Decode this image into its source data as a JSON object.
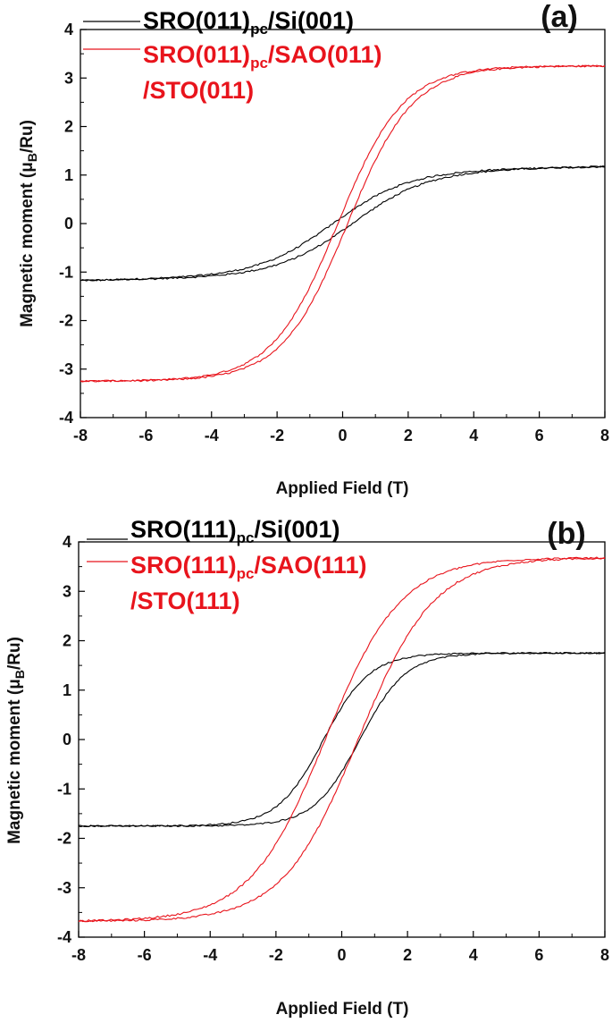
{
  "chart_data": [
    {
      "type": "line",
      "panel_label": "(a)",
      "xlabel": "Applied Field (T)",
      "ylabel": "Magnetic moment (μB/Ru)",
      "ylabel_parts": {
        "pre": "Magnetic moment (",
        "mu": "μ",
        "sub": "B",
        "post": "/Ru)"
      },
      "xlim": [
        -8,
        8
      ],
      "ylim": [
        -4,
        4
      ],
      "xticks": [
        "-8",
        "-6",
        "-4",
        "-2",
        "0",
        "2",
        "4",
        "6",
        "8"
      ],
      "yticks": [
        "-4",
        "-3",
        "-2",
        "-1",
        "0",
        "1",
        "2",
        "3",
        "4"
      ],
      "series": [
        {
          "name": "SRO(011)pc/Si(001)",
          "legend_parts": {
            "pre": "SRO(011)",
            "sub": "pc",
            "post": "/Si(001)"
          },
          "color": "#000000",
          "ms": 1.08,
          "hc": 0.3,
          "h0": 2.3,
          "noise": 0.035,
          "slope": 0.012
        },
        {
          "name": "SRO(011)pc/SAO(011)/STO(011)",
          "legend_parts": {
            "pre": "SRO(011)",
            "sub": "pc",
            "post": "/SAO(011)",
            "line2": "/STO(011)"
          },
          "color": "#e8141c",
          "ms": 3.25,
          "hc": 0.15,
          "h0": 2.0,
          "noise": 0.035,
          "slope": 0.0
        }
      ]
    },
    {
      "type": "line",
      "panel_label": "(b)",
      "xlabel": "Applied Field (T)",
      "ylabel": "Magnetic moment (μB/Ru)",
      "ylabel_parts": {
        "pre": "Magnetic moment (",
        "mu": "μ",
        "sub": "B",
        "post": "/Ru)"
      },
      "xlim": [
        -8,
        8
      ],
      "ylim": [
        -4,
        4
      ],
      "xticks": [
        "-8",
        "-6",
        "-4",
        "-2",
        "0",
        "2",
        "4",
        "6",
        "8"
      ],
      "yticks": [
        "-4",
        "-3",
        "-2",
        "-1",
        "0",
        "1",
        "2",
        "3",
        "4"
      ],
      "series": [
        {
          "name": "SRO(111)pc/Si(001)",
          "legend_parts": {
            "pre": "SRO(111)",
            "sub": "pc",
            "post": "/Si(001)"
          },
          "color": "#000000",
          "ms": 1.75,
          "hc": 0.55,
          "h0": 1.4,
          "noise": 0.03,
          "slope": 0.0
        },
        {
          "name": "SRO(111)pc/SAO(111)/STO(111)",
          "legend_parts": {
            "pre": "SRO(111)",
            "sub": "pc",
            "post": "/SAO(111)",
            "line2": "/STO(111)"
          },
          "color": "#e8141c",
          "ms": 3.68,
          "hc": 0.5,
          "h0": 2.3,
          "noise": 0.035,
          "slope": 0.0
        }
      ]
    }
  ]
}
